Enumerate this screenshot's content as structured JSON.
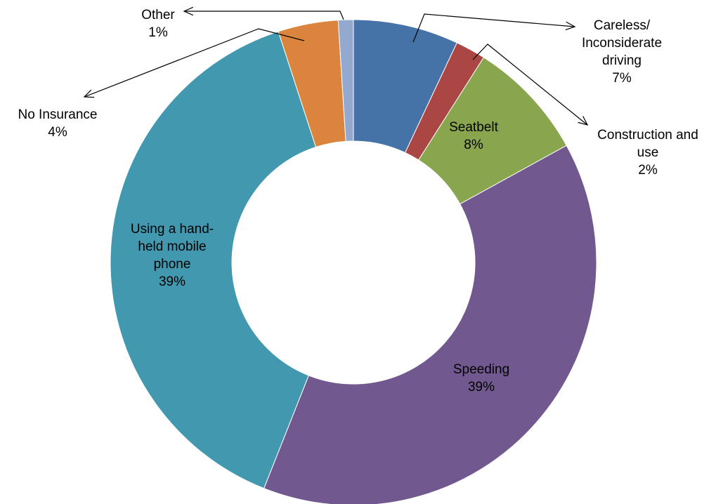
{
  "chart_data": {
    "type": "pie",
    "variant": "donut",
    "title": "",
    "legend": "none",
    "slices": [
      {
        "name": "Careless/ Inconsiderate driving",
        "label_lines": [
          "Careless/",
          "Inconsiderate",
          "driving"
        ],
        "value": 7,
        "pct_label": "7%",
        "color": "#4572A7"
      },
      {
        "name": "Construction and use",
        "label_lines": [
          "Construction and",
          "use"
        ],
        "value": 2,
        "pct_label": "2%",
        "color": "#AA4643"
      },
      {
        "name": "Seatbelt",
        "label_lines": [
          "Seatbelt"
        ],
        "value": 8,
        "pct_label": "8%",
        "color": "#89A54E"
      },
      {
        "name": "Speeding",
        "label_lines": [
          "Speeding"
        ],
        "value": 39,
        "pct_label": "39%",
        "color": "#71588F"
      },
      {
        "name": "Using a hand-held mobile phone",
        "label_lines": [
          "Using a hand-",
          "held mobile",
          "phone"
        ],
        "value": 39,
        "pct_label": "39%",
        "color": "#4198AF"
      },
      {
        "name": "No Insurance",
        "label_lines": [
          "No Insurance"
        ],
        "value": 4,
        "pct_label": "4%",
        "color": "#DB843D"
      },
      {
        "name": "Other",
        "label_lines": [
          "Other"
        ],
        "value": 1,
        "pct_label": "1%",
        "color": "#93A9CF"
      }
    ]
  }
}
